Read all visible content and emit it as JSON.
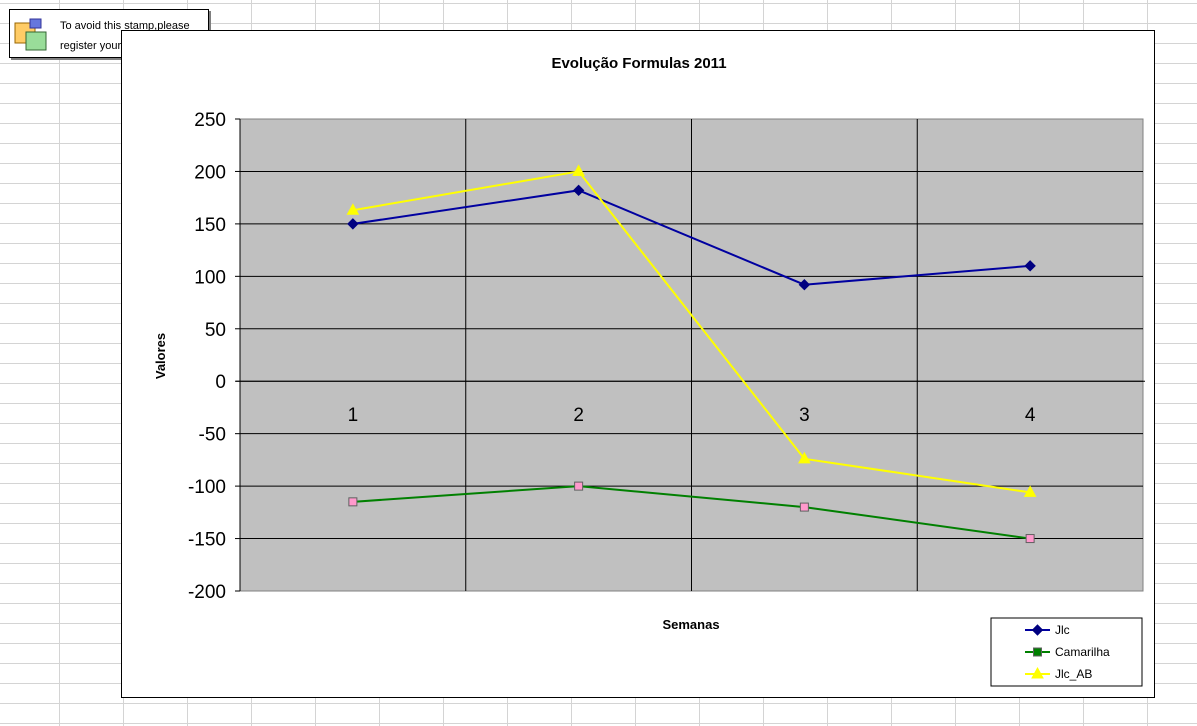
{
  "stamp": {
    "line1": "To avoid this stamp,please",
    "line2": "register your trial copy"
  },
  "chart_data": {
    "type": "line",
    "title": "Evolução Formulas 2011",
    "xlabel": "Semanas",
    "ylabel": "Valores",
    "categories": [
      "1",
      "2",
      "3",
      "4"
    ],
    "ylim": [
      -200,
      250
    ],
    "yticks": [
      250,
      200,
      150,
      100,
      50,
      0,
      -50,
      -100,
      -150,
      -200
    ],
    "ytick_labels": [
      "250",
      "200",
      "150",
      "100",
      "50",
      "0",
      "-50",
      "-100",
      "-150",
      "-200"
    ],
    "grid": true,
    "legend": "bottom-right",
    "plot_background": "#c0c0c0",
    "series": [
      {
        "name": "Jlc",
        "values": [
          150,
          182,
          92,
          110
        ],
        "color": "#0000a0",
        "marker": "diamond",
        "marker_color": "#000080"
      },
      {
        "name": "Camarilha",
        "values": [
          -115,
          -100,
          -120,
          -150
        ],
        "color": "#008000",
        "marker": "square",
        "marker_color": "#ff99cc"
      },
      {
        "name": "Jlc_AB",
        "values": [
          163,
          200,
          -74,
          -106
        ],
        "color": "#ffff00",
        "marker": "triangle",
        "marker_color": "#ffff00"
      }
    ]
  }
}
